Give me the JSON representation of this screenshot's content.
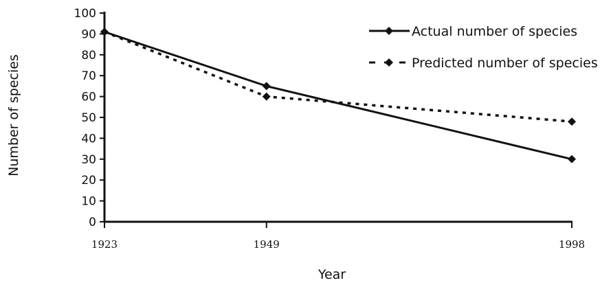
{
  "chart_data": {
    "type": "line",
    "x": [
      "1923",
      "1949",
      "1998"
    ],
    "x_numeric": [
      1923,
      1949,
      1998
    ],
    "xlabel": "Year",
    "ylabel": "Number of species",
    "ylim": [
      0,
      100
    ],
    "yticks": [
      0,
      10,
      20,
      30,
      40,
      50,
      60,
      70,
      80,
      90,
      100
    ],
    "grid": false,
    "legend_position": "top-right",
    "series": [
      {
        "name": "Actual number of species",
        "values": [
          91,
          65,
          30
        ],
        "line_style": "solid",
        "marker": "diamond",
        "color": "#111111"
      },
      {
        "name": "Predicted number of species",
        "values": [
          91,
          60,
          48
        ],
        "line_style": "dotted",
        "marker": "diamond",
        "color": "#111111"
      }
    ]
  }
}
